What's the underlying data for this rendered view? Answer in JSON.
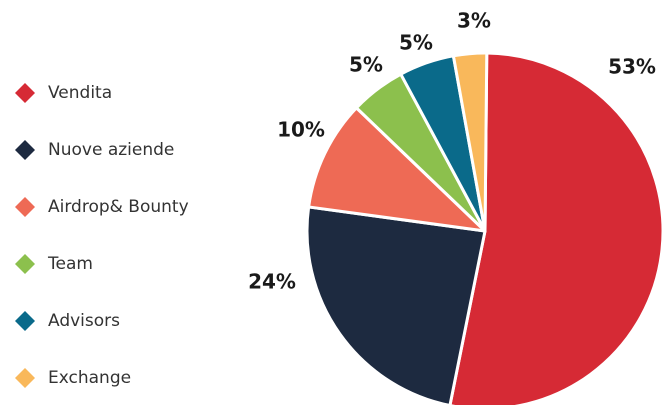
{
  "chart_data": {
    "type": "pie",
    "categories": [
      "Vendita",
      "Nuove aziende",
      "Airdrop& Bounty",
      "Team",
      "Advisors",
      "Exchange"
    ],
    "values": [
      53,
      24,
      10,
      5,
      5,
      3
    ],
    "value_labels": [
      "53%",
      "24%",
      "10%",
      "5%",
      "5%",
      "3%"
    ],
    "colors": [
      "#d62a35",
      "#1d2a40",
      "#ee6a55",
      "#8cc04d",
      "#0a6a8a",
      "#f9b85b"
    ],
    "legend": "left"
  }
}
